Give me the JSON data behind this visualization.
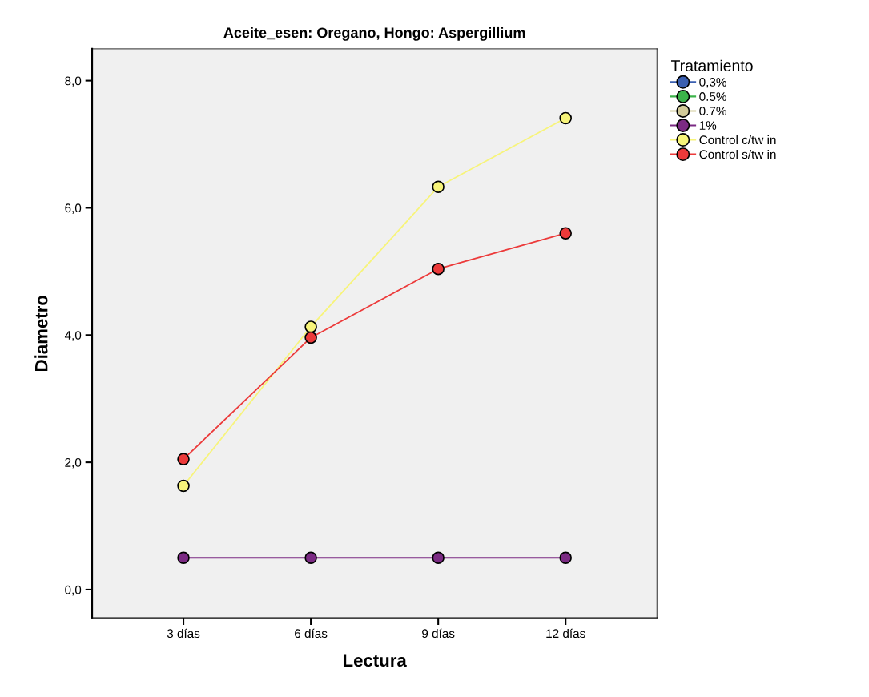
{
  "chart_data": {
    "type": "line",
    "title": "Aceite_esen: Oregano, Hongo: Aspergillium",
    "xlabel": "Lectura",
    "ylabel": "Diametro",
    "legend_title": "Tratamiento",
    "categories": [
      "3 días",
      "6 días",
      "9 días",
      "12 días"
    ],
    "series": [
      {
        "name": "0,3%",
        "color": "#3a5fb0",
        "values": [
          null,
          null,
          null,
          null
        ]
      },
      {
        "name": "0.5%",
        "color": "#3cb34a",
        "values": [
          null,
          null,
          null,
          null
        ]
      },
      {
        "name": "0.7%",
        "color": "#d2cb9a",
        "values": [
          null,
          null,
          null,
          null
        ]
      },
      {
        "name": "1%",
        "color": "#7b2a83",
        "values": [
          0.5,
          0.5,
          0.5,
          0.5
        ]
      },
      {
        "name": "Control c/tw in",
        "color": "#f7f47a",
        "values": [
          1.63,
          4.13,
          6.33,
          7.41
        ]
      },
      {
        "name": "Control s/tw in",
        "color": "#ec3a3a",
        "values": [
          2.05,
          3.96,
          5.04,
          5.6
        ]
      }
    ],
    "ylim": [
      -0.45,
      8.5
    ],
    "yticks": [
      {
        "value": 0,
        "label": "0,0"
      },
      {
        "value": 2,
        "label": "2,0"
      },
      {
        "value": 4,
        "label": "4,0"
      },
      {
        "value": 6,
        "label": "6,0"
      },
      {
        "value": 8,
        "label": "8,0"
      }
    ],
    "marker": "circle",
    "line_style": "solid",
    "grid": false,
    "legend": "right"
  }
}
